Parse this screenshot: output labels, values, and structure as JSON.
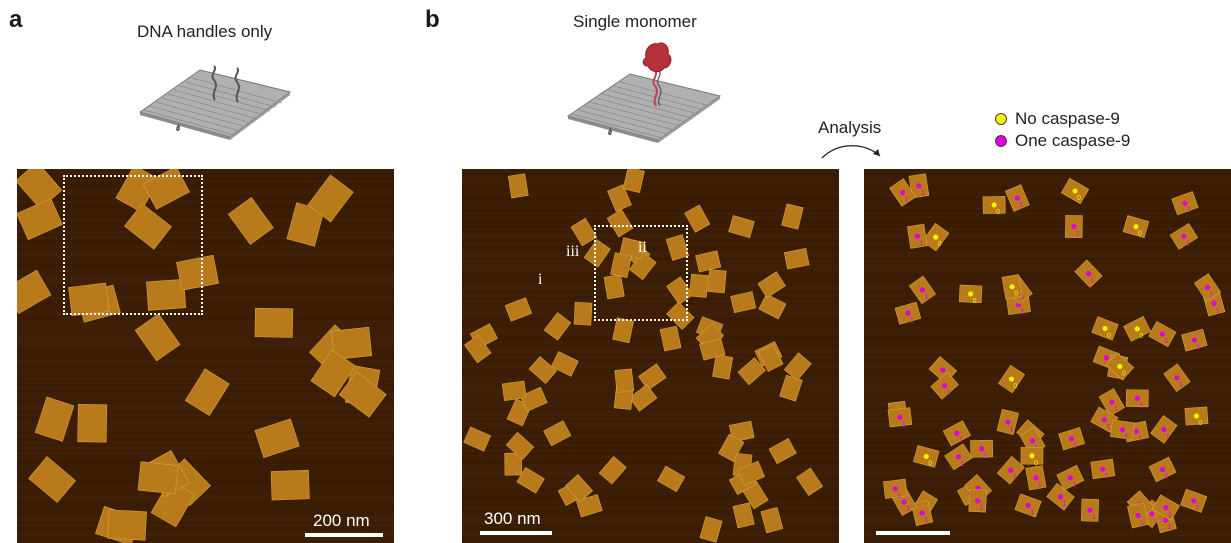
{
  "panels": {
    "a": {
      "letter": "a",
      "title": "DNA handles only",
      "scale_label": "200 nm"
    },
    "b": {
      "letter": "b",
      "title": "Single monomer",
      "scale_label": "300 nm",
      "regions": [
        "i",
        "ii",
        "iii"
      ]
    }
  },
  "analysis": {
    "label": "Analysis"
  },
  "legend": {
    "items": [
      {
        "label": "No caspase-9",
        "color": "#f2f200",
        "marker": "0"
      },
      {
        "label": "One caspase-9",
        "color": "#e000e0",
        "marker": "1"
      }
    ]
  },
  "colors": {
    "origami": "#b87a1a",
    "origami_highlight": "#d9a33a",
    "background": "#3b1d04",
    "protein": "#b5323c"
  }
}
